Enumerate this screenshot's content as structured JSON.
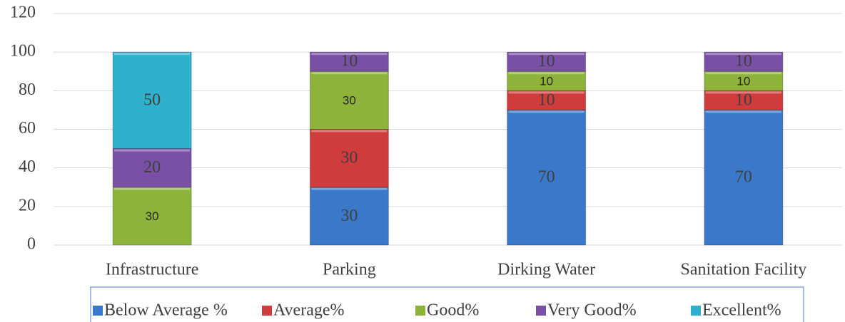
{
  "chart_data": {
    "type": "stacked_bar",
    "categories": [
      "Infrastructure",
      "Parking",
      "Dirking Water",
      "Sanitation Facility"
    ],
    "series": [
      {
        "name": "Below Average %",
        "color": "#3a78c9",
        "values": [
          null,
          30,
          70,
          70
        ]
      },
      {
        "name": "Average%",
        "color": "#d03b3b",
        "values": [
          null,
          30,
          10,
          10
        ]
      },
      {
        "name": "Good%",
        "color": "#8db33a",
        "values": [
          30,
          30,
          10,
          10
        ]
      },
      {
        "name": "Very Good%",
        "color": "#7a4fa6",
        "values": [
          20,
          10,
          10,
          10
        ]
      },
      {
        "name": "Excellent%",
        "color": "#2fb0cc",
        "values": [
          50,
          null,
          null,
          null
        ]
      }
    ],
    "ylim": [
      0,
      120
    ],
    "yticks": [
      0,
      20,
      40,
      60,
      80,
      100,
      120
    ],
    "grid": true,
    "legend": "bottom"
  }
}
